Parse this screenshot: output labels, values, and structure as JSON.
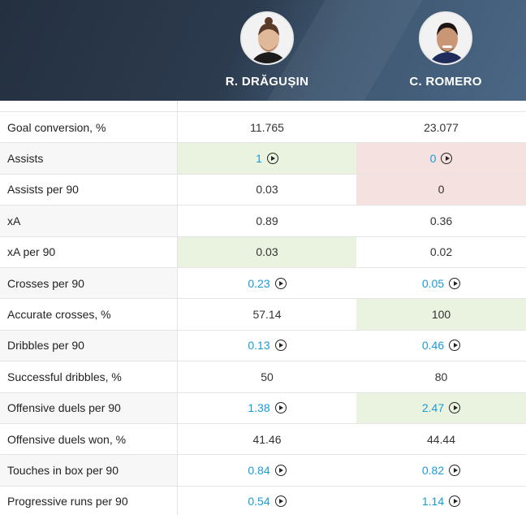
{
  "players": [
    {
      "name": "R. DRĂGUȘIN"
    },
    {
      "name": "C. ROMERO"
    }
  ],
  "rows": [
    {
      "label": "Goal conversion, %",
      "v1": "11.765",
      "v2": "23.077",
      "link1": false,
      "link2": false,
      "h1": "",
      "h2": ""
    },
    {
      "label": "Assists",
      "v1": "1",
      "v2": "0",
      "link1": true,
      "link2": true,
      "h1": "good",
      "h2": "bad"
    },
    {
      "label": "Assists per 90",
      "v1": "0.03",
      "v2": "0",
      "link1": false,
      "link2": false,
      "h1": "",
      "h2": "bad"
    },
    {
      "label": "xA",
      "v1": "0.89",
      "v2": "0.36",
      "link1": false,
      "link2": false,
      "h1": "",
      "h2": ""
    },
    {
      "label": "xA per 90",
      "v1": "0.03",
      "v2": "0.02",
      "link1": false,
      "link2": false,
      "h1": "good",
      "h2": ""
    },
    {
      "label": "Crosses per 90",
      "v1": "0.23",
      "v2": "0.05",
      "link1": true,
      "link2": true,
      "h1": "",
      "h2": ""
    },
    {
      "label": "Accurate crosses, %",
      "v1": "57.14",
      "v2": "100",
      "link1": false,
      "link2": false,
      "h1": "",
      "h2": "good"
    },
    {
      "label": "Dribbles per 90",
      "v1": "0.13",
      "v2": "0.46",
      "link1": true,
      "link2": true,
      "h1": "",
      "h2": ""
    },
    {
      "label": "Successful dribbles, %",
      "v1": "50",
      "v2": "80",
      "link1": false,
      "link2": false,
      "h1": "",
      "h2": ""
    },
    {
      "label": "Offensive duels per 90",
      "v1": "1.38",
      "v2": "2.47",
      "link1": true,
      "link2": true,
      "h1": "",
      "h2": "good"
    },
    {
      "label": "Offensive duels won, %",
      "v1": "41.46",
      "v2": "44.44",
      "link1": false,
      "link2": false,
      "h1": "",
      "h2": ""
    },
    {
      "label": "Touches in box per 90",
      "v1": "0.84",
      "v2": "0.82",
      "link1": true,
      "link2": true,
      "h1": "",
      "h2": ""
    },
    {
      "label": "Progressive runs per 90",
      "v1": "0.54",
      "v2": "1.14",
      "link1": true,
      "link2": true,
      "h1": "",
      "h2": ""
    }
  ]
}
